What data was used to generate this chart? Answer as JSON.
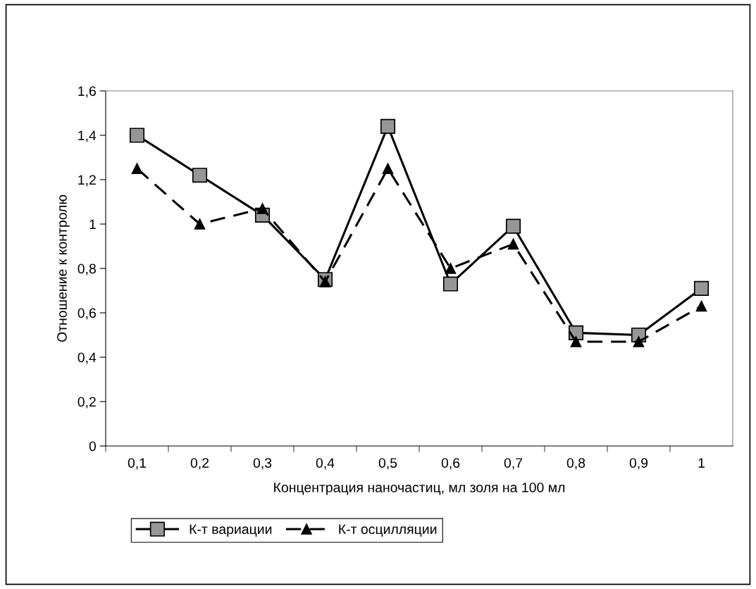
{
  "chart_data": {
    "type": "line",
    "xlabel": "Концентрация наночастиц, мл золя на 100 мл",
    "ylabel": "Отношение к контролю",
    "categories": [
      "0,1",
      "0,2",
      "0,3",
      "0,4",
      "0,5",
      "0,6",
      "0,7",
      "0,8",
      "0,9",
      "1"
    ],
    "series": [
      {
        "name": "К-т вариации",
        "color": "#000000",
        "marker": "square",
        "line_style": "solid",
        "values": [
          1.4,
          1.22,
          1.04,
          0.75,
          1.44,
          0.73,
          0.99,
          0.51,
          0.5,
          0.71
        ]
      },
      {
        "name": "К-т осцилляции",
        "color": "#000000",
        "marker": "triangle",
        "line_style": "dashed",
        "values": [
          1.25,
          1.0,
          1.07,
          0.74,
          1.25,
          0.8,
          0.91,
          0.47,
          0.47,
          0.63
        ]
      }
    ],
    "ylim": [
      0,
      1.6
    ],
    "yticks": [
      0,
      {
        "value": 0.2,
        "label": "0,2"
      },
      {
        "value": 0.4,
        "label": "0,4"
      },
      {
        "value": 0.6,
        "label": "0,6"
      },
      {
        "value": 0.8,
        "label": "0,8"
      },
      1,
      {
        "value": 1.2,
        "label": "1,2"
      },
      {
        "value": 1.4,
        "label": "1,4"
      },
      {
        "value": 1.6,
        "label": "1,6"
      }
    ],
    "grid": false,
    "legend": "bottom"
  }
}
